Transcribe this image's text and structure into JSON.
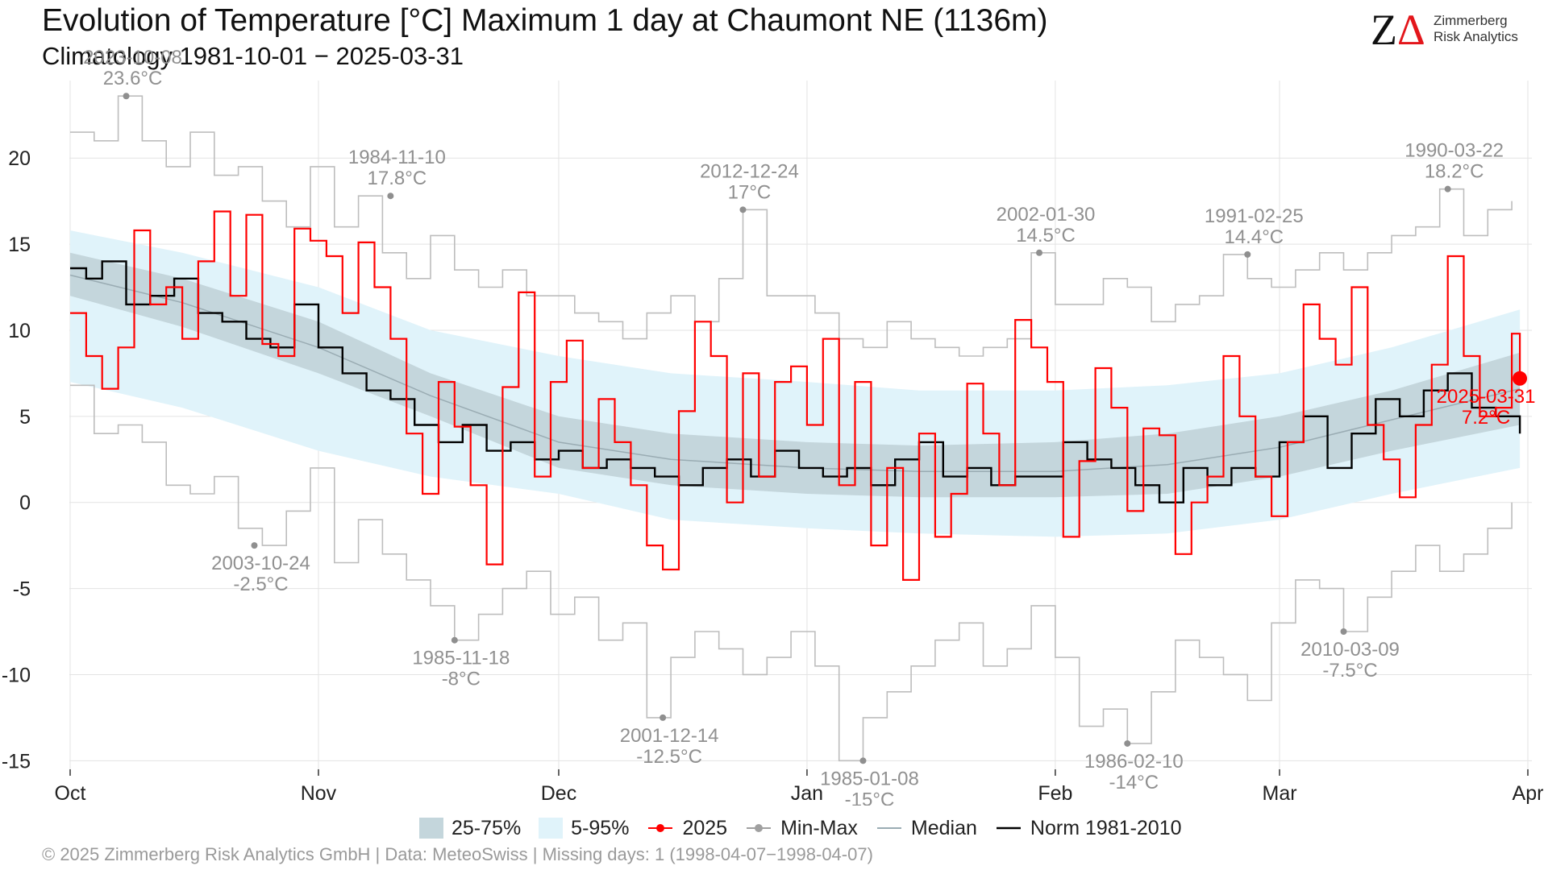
{
  "header": {
    "title": "Evolution of Temperature [°C] Maximum 1 day at Chaumont  NE (1136m)",
    "subtitle": "Climatology 1981-10-01 − 2025-03-31"
  },
  "logo": {
    "mark": "ZΔ",
    "line1": "Zimmerberg",
    "line2": "Risk Analytics"
  },
  "footer": "©  2025 Zimmerberg Risk Analytics GmbH | Data: MeteoSwiss | Missing days: 1 (1998-04-07−1998-04-07)",
  "colors": {
    "band_25_75": "#c4d6dc",
    "band_5_95": "#e0f3fa",
    "series_2025": "#ff0000",
    "minmax": "#bdbdbd",
    "median": "#9aacb3",
    "norm": "#000000",
    "annotation": "#909090"
  },
  "chart_data": {
    "type": "line",
    "x_axis": {
      "start": "2024-10-01",
      "end": "2025-04-01",
      "ticks": [
        "Oct",
        "Nov",
        "Dec",
        "Jan",
        "Feb",
        "Mar",
        "Apr"
      ]
    },
    "y_axis": {
      "range": [
        -15.5,
        24.5
      ],
      "ticks": [
        -15,
        -10,
        -5,
        0,
        5,
        10,
        15,
        20
      ]
    },
    "grid": true,
    "legend_position": "bottom",
    "legend": [
      {
        "label": "25-75%",
        "kind": "band",
        "color": "#c4d6dc"
      },
      {
        "label": "5-95%",
        "kind": "band",
        "color": "#e0f3fa"
      },
      {
        "label": "2025",
        "kind": "line-point",
        "color": "#ff0000"
      },
      {
        "label": "Min-Max",
        "kind": "line-point",
        "color": "#a0a0a0"
      },
      {
        "label": "Median",
        "kind": "line",
        "color": "#9aacb3"
      },
      {
        "label": "Norm 1981-2010",
        "kind": "line",
        "color": "#000000"
      }
    ],
    "bands": {
      "p05_p95": {
        "dates": [
          "2024-10-01",
          "2024-10-15",
          "2024-11-01",
          "2024-11-15",
          "2024-12-01",
          "2024-12-15",
          "2025-01-01",
          "2025-01-15",
          "2025-02-01",
          "2025-02-15",
          "2025-03-01",
          "2025-03-15",
          "2025-03-31"
        ],
        "lower": [
          7.0,
          5.5,
          3.0,
          1.5,
          0.5,
          -1.0,
          -1.5,
          -1.8,
          -2.0,
          -1.8,
          -1.0,
          0.5,
          2.0
        ],
        "upper": [
          15.8,
          14.5,
          12.5,
          10.0,
          8.5,
          7.5,
          7.0,
          6.5,
          6.5,
          6.8,
          7.5,
          9.0,
          11.2
        ]
      },
      "p25_p75": {
        "dates": [
          "2024-10-01",
          "2024-10-15",
          "2024-11-01",
          "2024-11-15",
          "2024-12-01",
          "2024-12-15",
          "2025-01-01",
          "2025-01-15",
          "2025-02-01",
          "2025-02-15",
          "2025-03-01",
          "2025-03-15",
          "2025-03-31"
        ],
        "lower": [
          12.0,
          10.2,
          7.5,
          5.0,
          2.0,
          1.0,
          0.5,
          0.3,
          0.3,
          0.5,
          1.5,
          3.0,
          4.5
        ],
        "upper": [
          14.5,
          13.0,
          10.5,
          7.5,
          5.0,
          4.0,
          3.5,
          3.3,
          3.5,
          4.0,
          5.0,
          6.5,
          8.7
        ]
      }
    },
    "series": [
      {
        "name": "2025",
        "color": "#ff0000",
        "dates": [
          "2024-10-01",
          "2024-10-03",
          "2024-10-05",
          "2024-10-07",
          "2024-10-09",
          "2024-10-11",
          "2024-10-13",
          "2024-10-15",
          "2024-10-17",
          "2024-10-19",
          "2024-10-21",
          "2024-10-23",
          "2024-10-25",
          "2024-10-27",
          "2024-10-29",
          "2024-10-31",
          "2024-11-02",
          "2024-11-04",
          "2024-11-06",
          "2024-11-08",
          "2024-11-10",
          "2024-11-12",
          "2024-11-14",
          "2024-11-16",
          "2024-11-18",
          "2024-11-20",
          "2024-11-22",
          "2024-11-24",
          "2024-11-26",
          "2024-11-28",
          "2024-11-30",
          "2024-12-02",
          "2024-12-04",
          "2024-12-06",
          "2024-12-08",
          "2024-12-10",
          "2024-12-12",
          "2024-12-14",
          "2024-12-16",
          "2024-12-18",
          "2024-12-20",
          "2024-12-22",
          "2024-12-24",
          "2024-12-26",
          "2024-12-28",
          "2024-12-30",
          "2025-01-01",
          "2025-01-03",
          "2025-01-05",
          "2025-01-07",
          "2025-01-09",
          "2025-01-11",
          "2025-01-13",
          "2025-01-15",
          "2025-01-17",
          "2025-01-19",
          "2025-01-21",
          "2025-01-23",
          "2025-01-25",
          "2025-01-27",
          "2025-01-29",
          "2025-01-31",
          "2025-02-02",
          "2025-02-04",
          "2025-02-06",
          "2025-02-08",
          "2025-02-10",
          "2025-02-12",
          "2025-02-14",
          "2025-02-16",
          "2025-02-18",
          "2025-02-20",
          "2025-02-22",
          "2025-02-24",
          "2025-02-26",
          "2025-02-28",
          "2025-03-02",
          "2025-03-04",
          "2025-03-06",
          "2025-03-08",
          "2025-03-10",
          "2025-03-12",
          "2025-03-14",
          "2025-03-16",
          "2025-03-18",
          "2025-03-20",
          "2025-03-22",
          "2025-03-24",
          "2025-03-26",
          "2025-03-28",
          "2025-03-30",
          "2025-03-31"
        ],
        "values": [
          11.0,
          8.5,
          6.6,
          9.0,
          15.8,
          11.5,
          12.5,
          9.5,
          14.0,
          16.9,
          12.0,
          16.7,
          9.2,
          8.5,
          15.9,
          15.2,
          14.3,
          11.0,
          15.1,
          12.5,
          9.5,
          4.0,
          0.5,
          7.0,
          4.4,
          1.0,
          -3.6,
          6.7,
          12.2,
          1.5,
          7.0,
          9.4,
          2.0,
          6.0,
          3.5,
          1.0,
          -2.5,
          -3.9,
          5.3,
          10.5,
          8.5,
          0.0,
          7.5,
          1.5,
          7.0,
          7.9,
          4.5,
          9.5,
          1.0,
          7.0,
          -2.5,
          2.0,
          -4.5,
          4.0,
          -2.0,
          0.5,
          6.9,
          4.0,
          1.0,
          10.6,
          9.0,
          7.0,
          -2.0,
          2.4,
          7.8,
          5.5,
          -0.5,
          4.3,
          3.9,
          -3.0,
          0.0,
          1.5,
          8.5,
          5.0,
          1.5,
          -0.8,
          3.5,
          11.5,
          9.5,
          8.0,
          12.5,
          4.5,
          2.5,
          0.3,
          4.5,
          8.0,
          14.3,
          8.5,
          5.0,
          5.5,
          9.8,
          7.2
        ]
      },
      {
        "name": "Norm 1981-2010",
        "color": "#000000",
        "dates": [
          "2024-10-01",
          "2024-10-03",
          "2024-10-05",
          "2024-10-08",
          "2024-10-11",
          "2024-10-14",
          "2024-10-17",
          "2024-10-20",
          "2024-10-23",
          "2024-10-26",
          "2024-10-29",
          "2024-11-01",
          "2024-11-04",
          "2024-11-07",
          "2024-11-10",
          "2024-11-13",
          "2024-11-16",
          "2024-11-19",
          "2024-11-22",
          "2024-11-25",
          "2024-11-28",
          "2024-12-01",
          "2024-12-04",
          "2024-12-07",
          "2024-12-10",
          "2024-12-13",
          "2024-12-16",
          "2024-12-19",
          "2024-12-22",
          "2024-12-25",
          "2024-12-28",
          "2024-12-31",
          "2025-01-03",
          "2025-01-06",
          "2025-01-09",
          "2025-01-12",
          "2025-01-15",
          "2025-01-18",
          "2025-01-21",
          "2025-01-24",
          "2025-01-27",
          "2025-01-30",
          "2025-02-02",
          "2025-02-05",
          "2025-02-08",
          "2025-02-11",
          "2025-02-14",
          "2025-02-17",
          "2025-02-20",
          "2025-02-23",
          "2025-02-26",
          "2025-03-01",
          "2025-03-04",
          "2025-03-07",
          "2025-03-10",
          "2025-03-13",
          "2025-03-16",
          "2025-03-19",
          "2025-03-22",
          "2025-03-25",
          "2025-03-28",
          "2025-03-31"
        ],
        "values": [
          13.6,
          13.0,
          14.0,
          11.5,
          12.0,
          13.0,
          11.0,
          10.5,
          9.5,
          9.0,
          11.5,
          9.0,
          7.5,
          6.5,
          6.0,
          4.5,
          3.5,
          4.5,
          3.0,
          3.5,
          2.5,
          3.0,
          2.0,
          2.5,
          2.0,
          1.5,
          1.0,
          2.0,
          2.5,
          1.5,
          3.0,
          2.0,
          1.5,
          2.0,
          1.0,
          2.5,
          3.5,
          1.5,
          2.0,
          1.0,
          1.5,
          1.5,
          3.5,
          2.5,
          2.0,
          1.0,
          0.0,
          2.0,
          1.0,
          2.0,
          1.5,
          3.5,
          5.0,
          2.0,
          4.0,
          6.0,
          5.0,
          6.5,
          7.5,
          5.5,
          5.0,
          4.0
        ]
      },
      {
        "name": "Median",
        "color": "#9aacb3",
        "dates": [
          "2024-10-01",
          "2024-10-15",
          "2024-11-01",
          "2024-11-15",
          "2024-12-01",
          "2024-12-15",
          "2025-01-01",
          "2025-01-15",
          "2025-02-01",
          "2025-02-15",
          "2025-03-01",
          "2025-03-15",
          "2025-03-31"
        ],
        "values": [
          13.2,
          11.6,
          9.0,
          6.2,
          3.5,
          2.5,
          2.0,
          1.8,
          1.8,
          2.2,
          3.2,
          4.8,
          6.6
        ]
      },
      {
        "name": "Min-Max (max)",
        "color": "#bdbdbd",
        "dates": [
          "2024-10-01",
          "2024-10-04",
          "2024-10-07",
          "2024-10-10",
          "2024-10-13",
          "2024-10-16",
          "2024-10-19",
          "2024-10-22",
          "2024-10-25",
          "2024-10-28",
          "2024-10-31",
          "2024-11-03",
          "2024-11-06",
          "2024-11-09",
          "2024-11-12",
          "2024-11-15",
          "2024-11-18",
          "2024-11-21",
          "2024-11-24",
          "2024-11-27",
          "2024-11-30",
          "2024-12-03",
          "2024-12-06",
          "2024-12-09",
          "2024-12-12",
          "2024-12-15",
          "2024-12-18",
          "2024-12-21",
          "2024-12-24",
          "2024-12-27",
          "2024-12-30",
          "2025-01-02",
          "2025-01-05",
          "2025-01-08",
          "2025-01-11",
          "2025-01-14",
          "2025-01-17",
          "2025-01-20",
          "2025-01-23",
          "2025-01-26",
          "2025-01-29",
          "2025-02-01",
          "2025-02-04",
          "2025-02-07",
          "2025-02-10",
          "2025-02-13",
          "2025-02-16",
          "2025-02-19",
          "2025-02-22",
          "2025-02-25",
          "2025-02-28",
          "2025-03-03",
          "2025-03-06",
          "2025-03-09",
          "2025-03-12",
          "2025-03-15",
          "2025-03-18",
          "2025-03-21",
          "2025-03-24",
          "2025-03-27",
          "2025-03-30"
        ],
        "values": [
          21.5,
          21.0,
          23.6,
          21.0,
          19.5,
          21.5,
          19.0,
          19.5,
          17.5,
          16.0,
          19.5,
          16.0,
          17.8,
          14.5,
          13.0,
          15.5,
          13.5,
          12.5,
          13.5,
          12.0,
          12.0,
          11.0,
          10.5,
          9.5,
          11.0,
          12.0,
          10.5,
          13.0,
          17.0,
          12.0,
          12.0,
          11.0,
          9.5,
          9.0,
          10.5,
          9.5,
          9.0,
          8.5,
          9.0,
          9.5,
          14.5,
          11.5,
          11.5,
          13.0,
          12.5,
          10.5,
          11.5,
          12.0,
          14.4,
          13.0,
          12.5,
          13.5,
          14.5,
          13.5,
          14.5,
          15.5,
          16.0,
          18.2,
          15.5,
          17.0,
          17.5
        ]
      },
      {
        "name": "Min-Max (min)",
        "color": "#bdbdbd",
        "dates": [
          "2024-10-01",
          "2024-10-04",
          "2024-10-07",
          "2024-10-10",
          "2024-10-13",
          "2024-10-16",
          "2024-10-19",
          "2024-10-22",
          "2024-10-25",
          "2024-10-28",
          "2024-10-31",
          "2024-11-03",
          "2024-11-06",
          "2024-11-09",
          "2024-11-12",
          "2024-11-15",
          "2024-11-18",
          "2024-11-21",
          "2024-11-24",
          "2024-11-27",
          "2024-11-30",
          "2024-12-03",
          "2024-12-06",
          "2024-12-09",
          "2024-12-12",
          "2024-12-15",
          "2024-12-18",
          "2024-12-21",
          "2024-12-24",
          "2024-12-27",
          "2024-12-30",
          "2025-01-02",
          "2025-01-05",
          "2025-01-08",
          "2025-01-11",
          "2025-01-14",
          "2025-01-17",
          "2025-01-20",
          "2025-01-23",
          "2025-01-26",
          "2025-01-29",
          "2025-02-01",
          "2025-02-04",
          "2025-02-07",
          "2025-02-10",
          "2025-02-13",
          "2025-02-16",
          "2025-02-19",
          "2025-02-22",
          "2025-02-25",
          "2025-02-28",
          "2025-03-03",
          "2025-03-06",
          "2025-03-09",
          "2025-03-12",
          "2025-03-15",
          "2025-03-18",
          "2025-03-21",
          "2025-03-24",
          "2025-03-27",
          "2025-03-30"
        ],
        "values": [
          6.8,
          4.0,
          4.5,
          3.5,
          1.0,
          0.5,
          1.5,
          -1.5,
          -2.5,
          -0.5,
          2.0,
          -3.5,
          -1.0,
          -3.0,
          -4.5,
          -6.0,
          -8.0,
          -6.5,
          -5.0,
          -4.0,
          -6.5,
          -5.5,
          -8.0,
          -7.0,
          -12.5,
          -9.0,
          -7.5,
          -8.5,
          -10.0,
          -9.0,
          -7.5,
          -9.5,
          -15.0,
          -12.5,
          -11.0,
          -9.5,
          -8.0,
          -7.0,
          -9.5,
          -8.5,
          -6.0,
          -9.0,
          -13.0,
          -12.0,
          -14.0,
          -11.0,
          -8.0,
          -9.0,
          -10.0,
          -11.5,
          -7.0,
          -4.5,
          -5.0,
          -7.5,
          -5.5,
          -4.0,
          -2.5,
          -4.0,
          -3.0,
          -1.5,
          0.0
        ]
      }
    ],
    "annotations": [
      {
        "date": "2023-10-08",
        "value_label": "23.6°C",
        "x": "2024-10-08",
        "y": 23.6
      },
      {
        "date": "1984-11-10",
        "value_label": "17.8°C",
        "x": "2024-11-10",
        "y": 17.8
      },
      {
        "date": "2012-12-24",
        "value_label": "17°C",
        "x": "2024-12-24",
        "y": 17.0
      },
      {
        "date": "2002-01-30",
        "value_label": "14.5°C",
        "x": "2025-01-30",
        "y": 14.5
      },
      {
        "date": "1991-02-25",
        "value_label": "14.4°C",
        "x": "2025-02-25",
        "y": 14.4
      },
      {
        "date": "1990-03-22",
        "value_label": "18.2°C",
        "x": "2025-03-22",
        "y": 18.2
      },
      {
        "date": "2003-10-24",
        "value_label": "-2.5°C",
        "x": "2024-10-24",
        "y": -2.5
      },
      {
        "date": "1985-11-18",
        "value_label": "-8°C",
        "x": "2024-11-18",
        "y": -8.0
      },
      {
        "date": "2001-12-14",
        "value_label": "-12.5°C",
        "x": "2024-12-14",
        "y": -12.5
      },
      {
        "date": "1985-01-08",
        "value_label": "-15°C",
        "x": "2025-01-08",
        "y": -15.0
      },
      {
        "date": "1986-02-10",
        "value_label": "-14°C",
        "x": "2025-02-10",
        "y": -14.0
      },
      {
        "date": "2010-03-09",
        "value_label": "-7.5°C",
        "x": "2025-03-09",
        "y": -7.5
      }
    ],
    "current": {
      "date": "2025-03-31",
      "value_label": "7.2°C",
      "x": "2025-03-31",
      "y": 7.2
    }
  }
}
